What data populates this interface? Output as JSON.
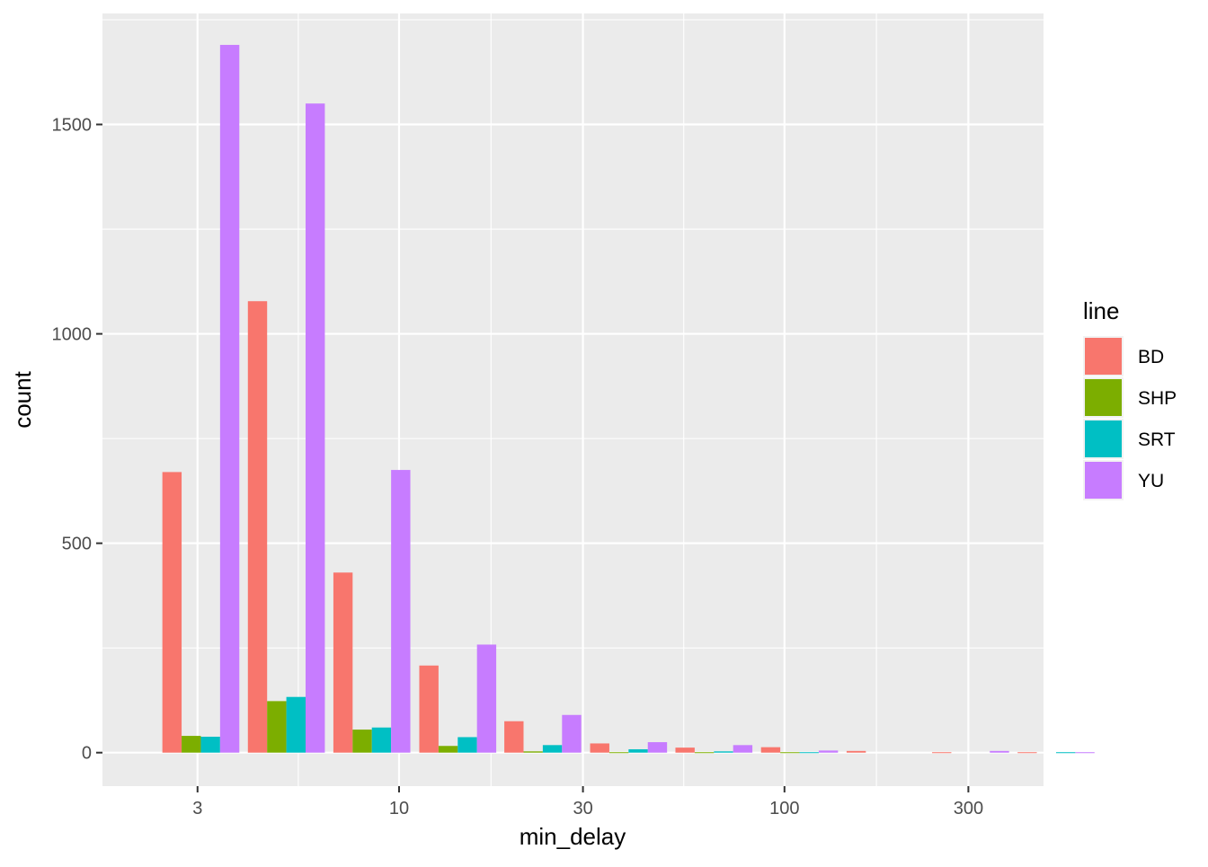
{
  "chart_data": {
    "type": "bar",
    "xlabel": "min_delay",
    "ylabel": "count",
    "x_scale": "log10",
    "x_ticks": [
      3,
      10,
      30,
      100,
      300
    ],
    "x_tick_labels": [
      "3",
      "10",
      "30",
      "100",
      "300"
    ],
    "y_ticks": [
      0,
      500,
      1000,
      1500
    ],
    "y_tick_labels": [
      "0",
      "500",
      "1000",
      "1500"
    ],
    "ylim": [
      -80,
      1765
    ],
    "xlim": [
      1.7,
      470
    ],
    "grid": true,
    "legend_position": "right",
    "legend_title": "line",
    "bin_centers": [
      3.06,
      5.1,
      8.5,
      14.2,
      23.6,
      39.4,
      65.6,
      109.4,
      182.4,
      304,
      506.6
    ],
    "series": [
      {
        "name": "BD",
        "color": "#F8766D",
        "values": [
          670,
          1078,
          430,
          208,
          75,
          22,
          12,
          13,
          4,
          1,
          1
        ]
      },
      {
        "name": "SHP",
        "color": "#7CAE00",
        "values": [
          40,
          123,
          55,
          16,
          3,
          1,
          1,
          1,
          0,
          0,
          0
        ]
      },
      {
        "name": "SRT",
        "color": "#00BFC4",
        "values": [
          38,
          133,
          60,
          37,
          18,
          8,
          3,
          1,
          0,
          0,
          1
        ]
      },
      {
        "name": "YU",
        "color": "#C77CFF",
        "values": [
          1690,
          1550,
          675,
          258,
          90,
          25,
          18,
          5,
          0,
          4,
          1
        ]
      }
    ]
  }
}
